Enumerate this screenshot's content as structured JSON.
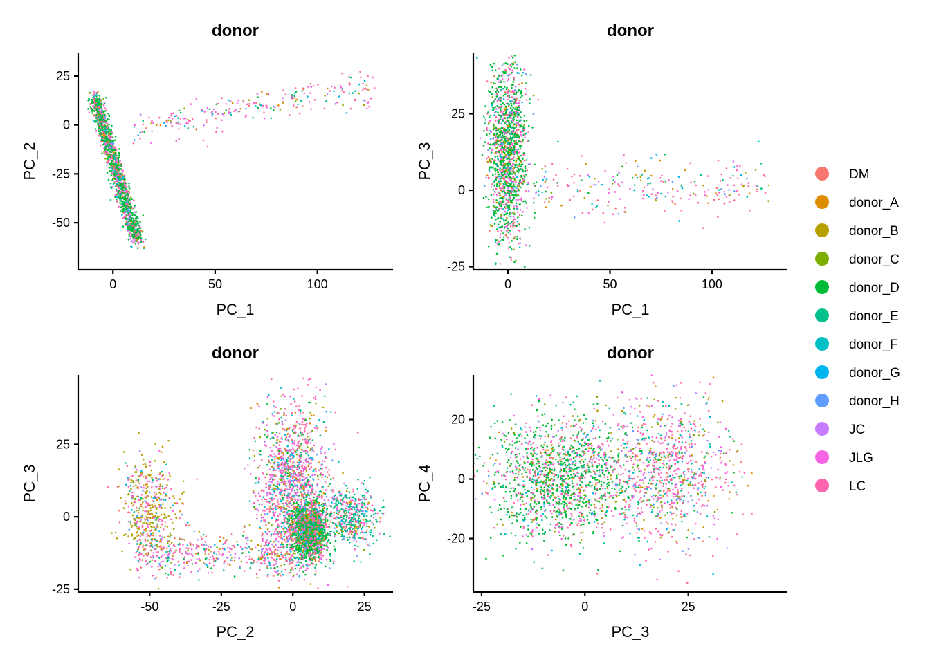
{
  "chart_data": [
    {
      "type": "scatter",
      "title": "donor",
      "xlabel": "PC_1",
      "ylabel": "PC_2",
      "xlim": [
        -17,
        137
      ],
      "ylim": [
        -74,
        37
      ],
      "xticks": [
        0,
        50,
        100
      ],
      "yticks": [
        25,
        0,
        -25,
        -50
      ],
      "xtick_labels": [
        "0",
        "50",
        "100"
      ],
      "ytick_labels": [
        "25",
        "0",
        "-25",
        "-50"
      ],
      "clusters": [
        {
          "x": [
            -9,
            12
          ],
          "y": [
            -60,
            14
          ],
          "trend": "diag",
          "density": "very high",
          "dominant": "donor_D"
        },
        {
          "x": [
            10,
            128
          ],
          "y": [
            -8,
            28
          ],
          "trend": "arc",
          "density": "sparse",
          "dominant": "mixed"
        }
      ]
    },
    {
      "type": "scatter",
      "title": "donor",
      "xlabel": "PC_1",
      "ylabel": "PC_3",
      "xlim": [
        -17,
        137
      ],
      "ylim": [
        -26,
        45
      ],
      "xticks": [
        0,
        50,
        100
      ],
      "yticks": [
        25,
        0,
        -25
      ],
      "xtick_labels": [
        "0",
        "50",
        "100"
      ],
      "ytick_labels": [
        "25",
        "0",
        "-25"
      ],
      "clusters": [
        {
          "x": [
            -10,
            10
          ],
          "y": [
            -22,
            45
          ],
          "trend": "vertical",
          "density": "very high",
          "dominant": "donor_D"
        },
        {
          "x": [
            10,
            128
          ],
          "y": [
            -14,
            20
          ],
          "trend": "horizontal",
          "density": "sparse",
          "dominant": "mixed"
        }
      ]
    },
    {
      "type": "scatter",
      "title": "donor",
      "xlabel": "PC_2",
      "ylabel": "PC_3",
      "xlim": [
        -75,
        35
      ],
      "ylim": [
        -26,
        49
      ],
      "xticks": [
        -50,
        -25,
        0,
        25
      ],
      "yticks": [
        25,
        0,
        -25
      ],
      "xtick_labels": [
        "-50",
        "-25",
        "0",
        "25"
      ],
      "ytick_labels": [
        "25",
        "0",
        "-25"
      ],
      "clusters": [
        {
          "x": [
            -60,
            -40
          ],
          "y": [
            -15,
            20
          ],
          "trend": "blob",
          "density": "medium",
          "dominant": "donor_B"
        },
        {
          "x": [
            -55,
            0
          ],
          "y": [
            -20,
            -5
          ],
          "trend": "band",
          "density": "medium",
          "dominant": "mixed"
        },
        {
          "x": [
            -12,
            12
          ],
          "y": [
            -20,
            40
          ],
          "trend": "blob",
          "density": "very high",
          "dominant": "mixed"
        },
        {
          "x": [
            0,
            12
          ],
          "y": [
            -15,
            5
          ],
          "trend": "blob",
          "density": "very high",
          "dominant": "donor_D"
        },
        {
          "x": [
            12,
            30
          ],
          "y": [
            -10,
            10
          ],
          "trend": "blob",
          "density": "medium",
          "dominant": "donor_E"
        }
      ]
    },
    {
      "type": "scatter",
      "title": "donor",
      "xlabel": "PC_3",
      "ylabel": "PC_4",
      "xlim": [
        -27,
        49
      ],
      "ylim": [
        -38,
        35
      ],
      "xticks": [
        -25,
        0,
        25
      ],
      "yticks": [
        20,
        0,
        -20
      ],
      "xtick_labels": [
        "-25",
        "0",
        "25"
      ],
      "ytick_labels": [
        "20",
        "0",
        "-20"
      ],
      "clusters": [
        {
          "x": [
            -22,
            10
          ],
          "y": [
            -20,
            20
          ],
          "trend": "blob",
          "density": "very high",
          "dominant": "donor_D"
        },
        {
          "x": [
            5,
            35
          ],
          "y": [
            -22,
            28
          ],
          "trend": "blob",
          "density": "high",
          "dominant": "mixed"
        }
      ]
    }
  ],
  "legend": {
    "position": "right",
    "items": [
      {
        "label": "DM",
        "color": "#F8766D"
      },
      {
        "label": "donor_A",
        "color": "#DE8C00"
      },
      {
        "label": "donor_B",
        "color": "#B79F00"
      },
      {
        "label": "donor_C",
        "color": "#7CAE00"
      },
      {
        "label": "donor_D",
        "color": "#00BA38"
      },
      {
        "label": "donor_E",
        "color": "#00C08B"
      },
      {
        "label": "donor_F",
        "color": "#00BFC4"
      },
      {
        "label": "donor_G",
        "color": "#00B4F0"
      },
      {
        "label": "donor_H",
        "color": "#619CFF"
      },
      {
        "label": "JC",
        "color": "#C77CFF"
      },
      {
        "label": "JLG",
        "color": "#F564E3"
      },
      {
        "label": "LC",
        "color": "#FF64B0"
      }
    ]
  }
}
